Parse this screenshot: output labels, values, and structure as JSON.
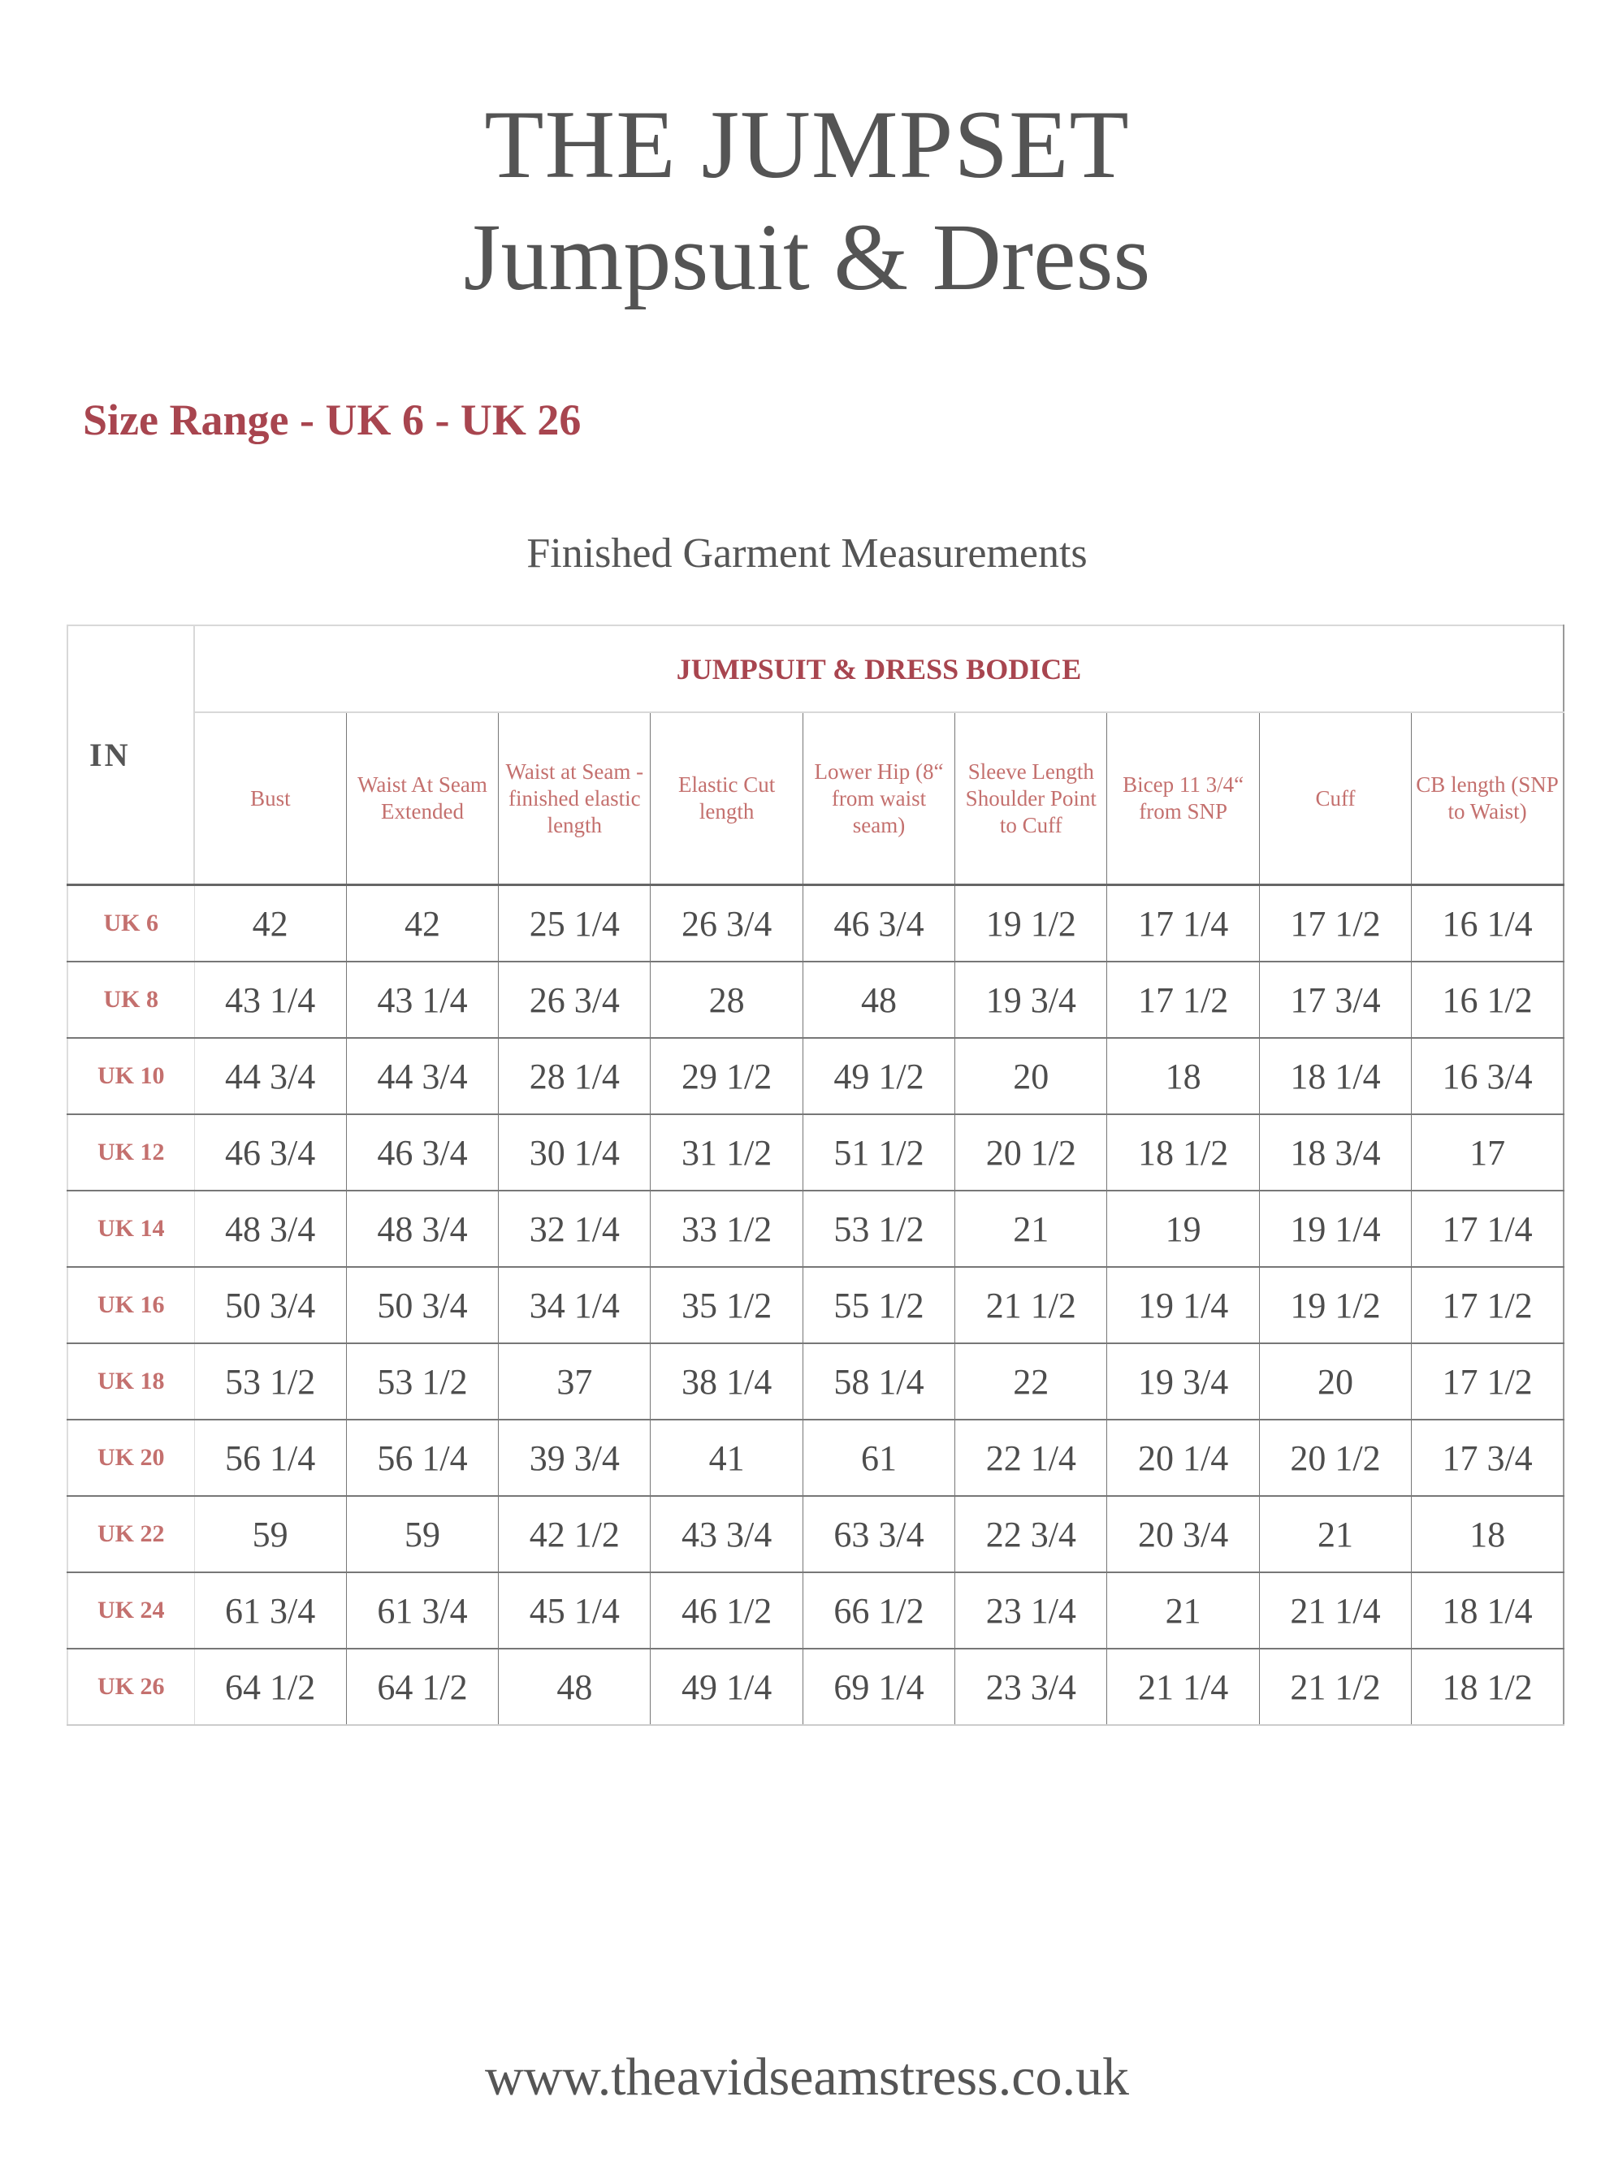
{
  "title": {
    "line1": "THE JUMPSET",
    "line2": "Jumpsuit & Dress"
  },
  "size_range": "Size Range - UK 6 - UK 26",
  "subtitle": "Finished Garment Measurements",
  "url": "www.theavidseamstress.co.uk",
  "colors": {
    "text": "#555555",
    "accent": "#a8454f",
    "header_label": "#c4706e"
  },
  "table": {
    "unit_label": "IN",
    "group_header": "JUMPSUIT & DRESS BODICE",
    "columns": [
      "Bust",
      "Waist At Seam Extended",
      "Waist at Seam - finished elastic length",
      "Elastic Cut length",
      "Lower Hip (8“ from waist seam)",
      "Sleeve Length Shoulder Point to Cuff",
      "Bicep 11 3/4“ from SNP",
      "Cuff",
      "CB length (SNP to Waist)"
    ],
    "rows": [
      {
        "size": "UK 6",
        "values": [
          "42",
          "42",
          "25 1/4",
          "26 3/4",
          "46 3/4",
          "19 1/2",
          "17 1/4",
          "17 1/2",
          "16 1/4"
        ]
      },
      {
        "size": "UK 8",
        "values": [
          "43 1/4",
          "43 1/4",
          "26 3/4",
          "28",
          "48",
          "19 3/4",
          "17 1/2",
          "17 3/4",
          "16 1/2"
        ]
      },
      {
        "size": "UK 10",
        "values": [
          "44 3/4",
          "44 3/4",
          "28 1/4",
          "29 1/2",
          "49 1/2",
          "20",
          "18",
          "18 1/4",
          "16 3/4"
        ]
      },
      {
        "size": "UK 12",
        "values": [
          "46 3/4",
          "46 3/4",
          "30 1/4",
          "31 1/2",
          "51 1/2",
          "20 1/2",
          "18 1/2",
          "18 3/4",
          "17"
        ]
      },
      {
        "size": "UK 14",
        "values": [
          "48 3/4",
          "48 3/4",
          "32 1/4",
          "33 1/2",
          "53 1/2",
          "21",
          "19",
          "19 1/4",
          "17 1/4"
        ]
      },
      {
        "size": "UK 16",
        "values": [
          "50 3/4",
          "50 3/4",
          "34 1/4",
          "35 1/2",
          "55 1/2",
          "21 1/2",
          "19 1/4",
          "19 1/2",
          "17 1/2"
        ]
      },
      {
        "size": "UK 18",
        "values": [
          "53 1/2",
          "53 1/2",
          "37",
          "38 1/4",
          "58 1/4",
          "22",
          "19 3/4",
          "20",
          "17 1/2"
        ]
      },
      {
        "size": "UK 20",
        "values": [
          "56 1/4",
          "56 1/4",
          "39 3/4",
          "41",
          "61",
          "22 1/4",
          "20 1/4",
          "20 1/2",
          "17 3/4"
        ]
      },
      {
        "size": "UK 22",
        "values": [
          "59",
          "59",
          "42 1/2",
          "43 3/4",
          "63 3/4",
          "22 3/4",
          "20 3/4",
          "21",
          "18"
        ]
      },
      {
        "size": "UK 24",
        "values": [
          "61 3/4",
          "61 3/4",
          "45 1/4",
          "46 1/2",
          "66 1/2",
          "23 1/4",
          "21",
          "21 1/4",
          "18 1/4"
        ]
      },
      {
        "size": "UK 26",
        "values": [
          "64 1/2",
          "64 1/2",
          "48",
          "49 1/4",
          "69 1/4",
          "23 3/4",
          "21 1/4",
          "21 1/2",
          "18 1/2"
        ]
      }
    ]
  }
}
